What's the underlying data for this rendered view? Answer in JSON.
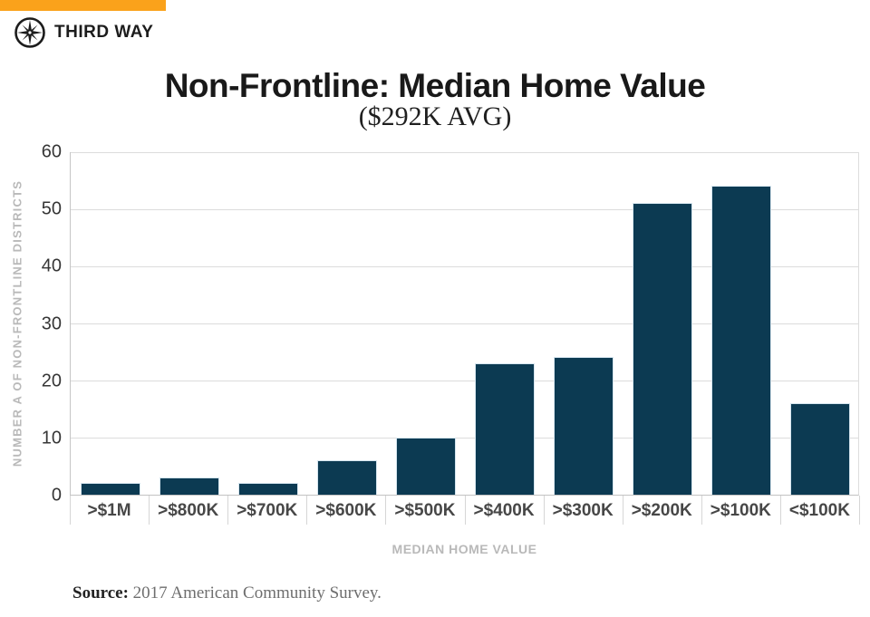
{
  "brand": {
    "logo_text": "THIRD WAY",
    "accent_color": "#FAA21B",
    "navy": "#0C3A52"
  },
  "header": {
    "title": "Non-Frontline: Median Home Value",
    "subtitle": "($292K AVG)"
  },
  "chart_data": {
    "type": "bar",
    "title": "Non-Frontline: Median Home Value",
    "subtitle": "($292K AVG)",
    "categories": [
      ">$1M",
      ">$800K",
      ">$700K",
      ">$600K",
      ">$500K",
      ">$400K",
      ">$300K",
      ">$200K",
      ">$100K",
      "<$100K"
    ],
    "values": [
      2,
      3,
      2,
      6,
      10,
      23,
      24,
      51,
      54,
      16
    ],
    "xlabel": "MEDIAN HOME VALUE",
    "ylabel": "NUMBER A OF NON-FRONTLINE DISTRICTS",
    "ylim": [
      0,
      60
    ],
    "yticks": [
      0,
      10,
      20,
      30,
      40,
      50,
      60
    ],
    "grid": true,
    "legend": "none",
    "bar_color": "#0C3A52",
    "gridline_color": "#dcdcdc"
  },
  "footer": {
    "source_label": "Source:",
    "source_text": " 2017 American Community Survey."
  }
}
